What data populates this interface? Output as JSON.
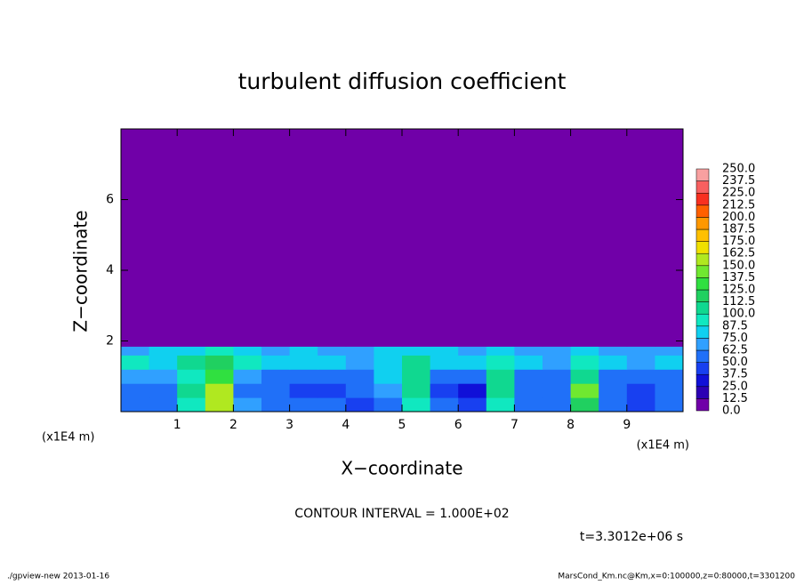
{
  "chart_data": {
    "type": "heatmap",
    "title": "turbulent diffusion coefficient",
    "xlabel": "X−coordinate",
    "ylabel": "Z−coordinate",
    "x_unit": "(x1E4 m)",
    "y_unit": "(x1E4 m)",
    "contour_note": "CONTOUR INTERVAL = 1.000E+02",
    "time_note": "t=3.3012e+06 s",
    "footer_left": "./gpview-new  2013-01-16",
    "footer_right": "MarsCond_Km.nc@Km,x=0:100000,z=0:80000,t=3301200",
    "xlim": [
      0,
      10
    ],
    "ylim": [
      0,
      8
    ],
    "xticks": [
      1,
      2,
      3,
      4,
      5,
      6,
      7,
      8,
      9
    ],
    "yticks": [
      2,
      4,
      6
    ],
    "x_edges": [
      0,
      0.5,
      1,
      1.5,
      2,
      2.5,
      3,
      3.5,
      4,
      4.5,
      5,
      5.5,
      6,
      6.5,
      7,
      7.5,
      8,
      8.5,
      9,
      9.5,
      10
    ],
    "z_edges": [
      0,
      0.4,
      0.8,
      1.2,
      1.6,
      1.85,
      8
    ],
    "values": [
      [
        60,
        55,
        90,
        150,
        70,
        60,
        55,
        50,
        45,
        55,
        90,
        50,
        40,
        90,
        60,
        55,
        120,
        55,
        45,
        60
      ],
      [
        55,
        60,
        100,
        160,
        60,
        50,
        45,
        45,
        50,
        70,
        100,
        40,
        30,
        110,
        55,
        60,
        140,
        50,
        40,
        55
      ],
      [
        70,
        65,
        90,
        130,
        70,
        55,
        50,
        55,
        60,
        80,
        100,
        60,
        50,
        100,
        60,
        60,
        110,
        55,
        50,
        60
      ],
      [
        90,
        80,
        110,
        120,
        90,
        80,
        85,
        75,
        70,
        85,
        110,
        80,
        75,
        95,
        80,
        70,
        90,
        75,
        70,
        80
      ],
      [
        70,
        75,
        80,
        90,
        75,
        70,
        75,
        70,
        70,
        75,
        80,
        75,
        70,
        75,
        70,
        70,
        75,
        70,
        70,
        70
      ],
      [
        0,
        0,
        0,
        0,
        0,
        0,
        0,
        0,
        0,
        0,
        0,
        0,
        0,
        0,
        0,
        0,
        0,
        0,
        0,
        0
      ]
    ],
    "colorbar_levels": [
      {
        "value": 0,
        "label": "0.0"
      },
      12.5,
      {
        "value": 25,
        "label": "25.0"
      },
      37.5,
      {
        "value": 50,
        "label": "50.0"
      },
      62.5,
      {
        "value": 75,
        "label": "75.0"
      },
      87.5,
      {
        "value": 100,
        "label": "100.0"
      },
      112.5,
      {
        "value": 125,
        "label": "125.0"
      },
      137.5,
      {
        "value": 150,
        "label": "150.0"
      },
      162.5,
      {
        "value": 175,
        "label": "175.0"
      },
      187.5,
      {
        "value": 200,
        "label": "200.0"
      },
      212.5,
      {
        "value": 225,
        "label": "225.0"
      },
      237.5,
      {
        "value": 250,
        "label": "250.0"
      }
    ],
    "colors": [
      "#7000a8",
      "#2c00b4",
      "#1010d8",
      "#1840f0",
      "#2070f8",
      "#30a0ff",
      "#10d0f0",
      "#10e8c0",
      "#10d890",
      "#20d060",
      "#30e040",
      "#70e830",
      "#b0e820",
      "#f0e000",
      "#ffc000",
      "#ff9800",
      "#ff6000",
      "#f83020",
      "#f86060",
      "#f8a0a0"
    ]
  }
}
